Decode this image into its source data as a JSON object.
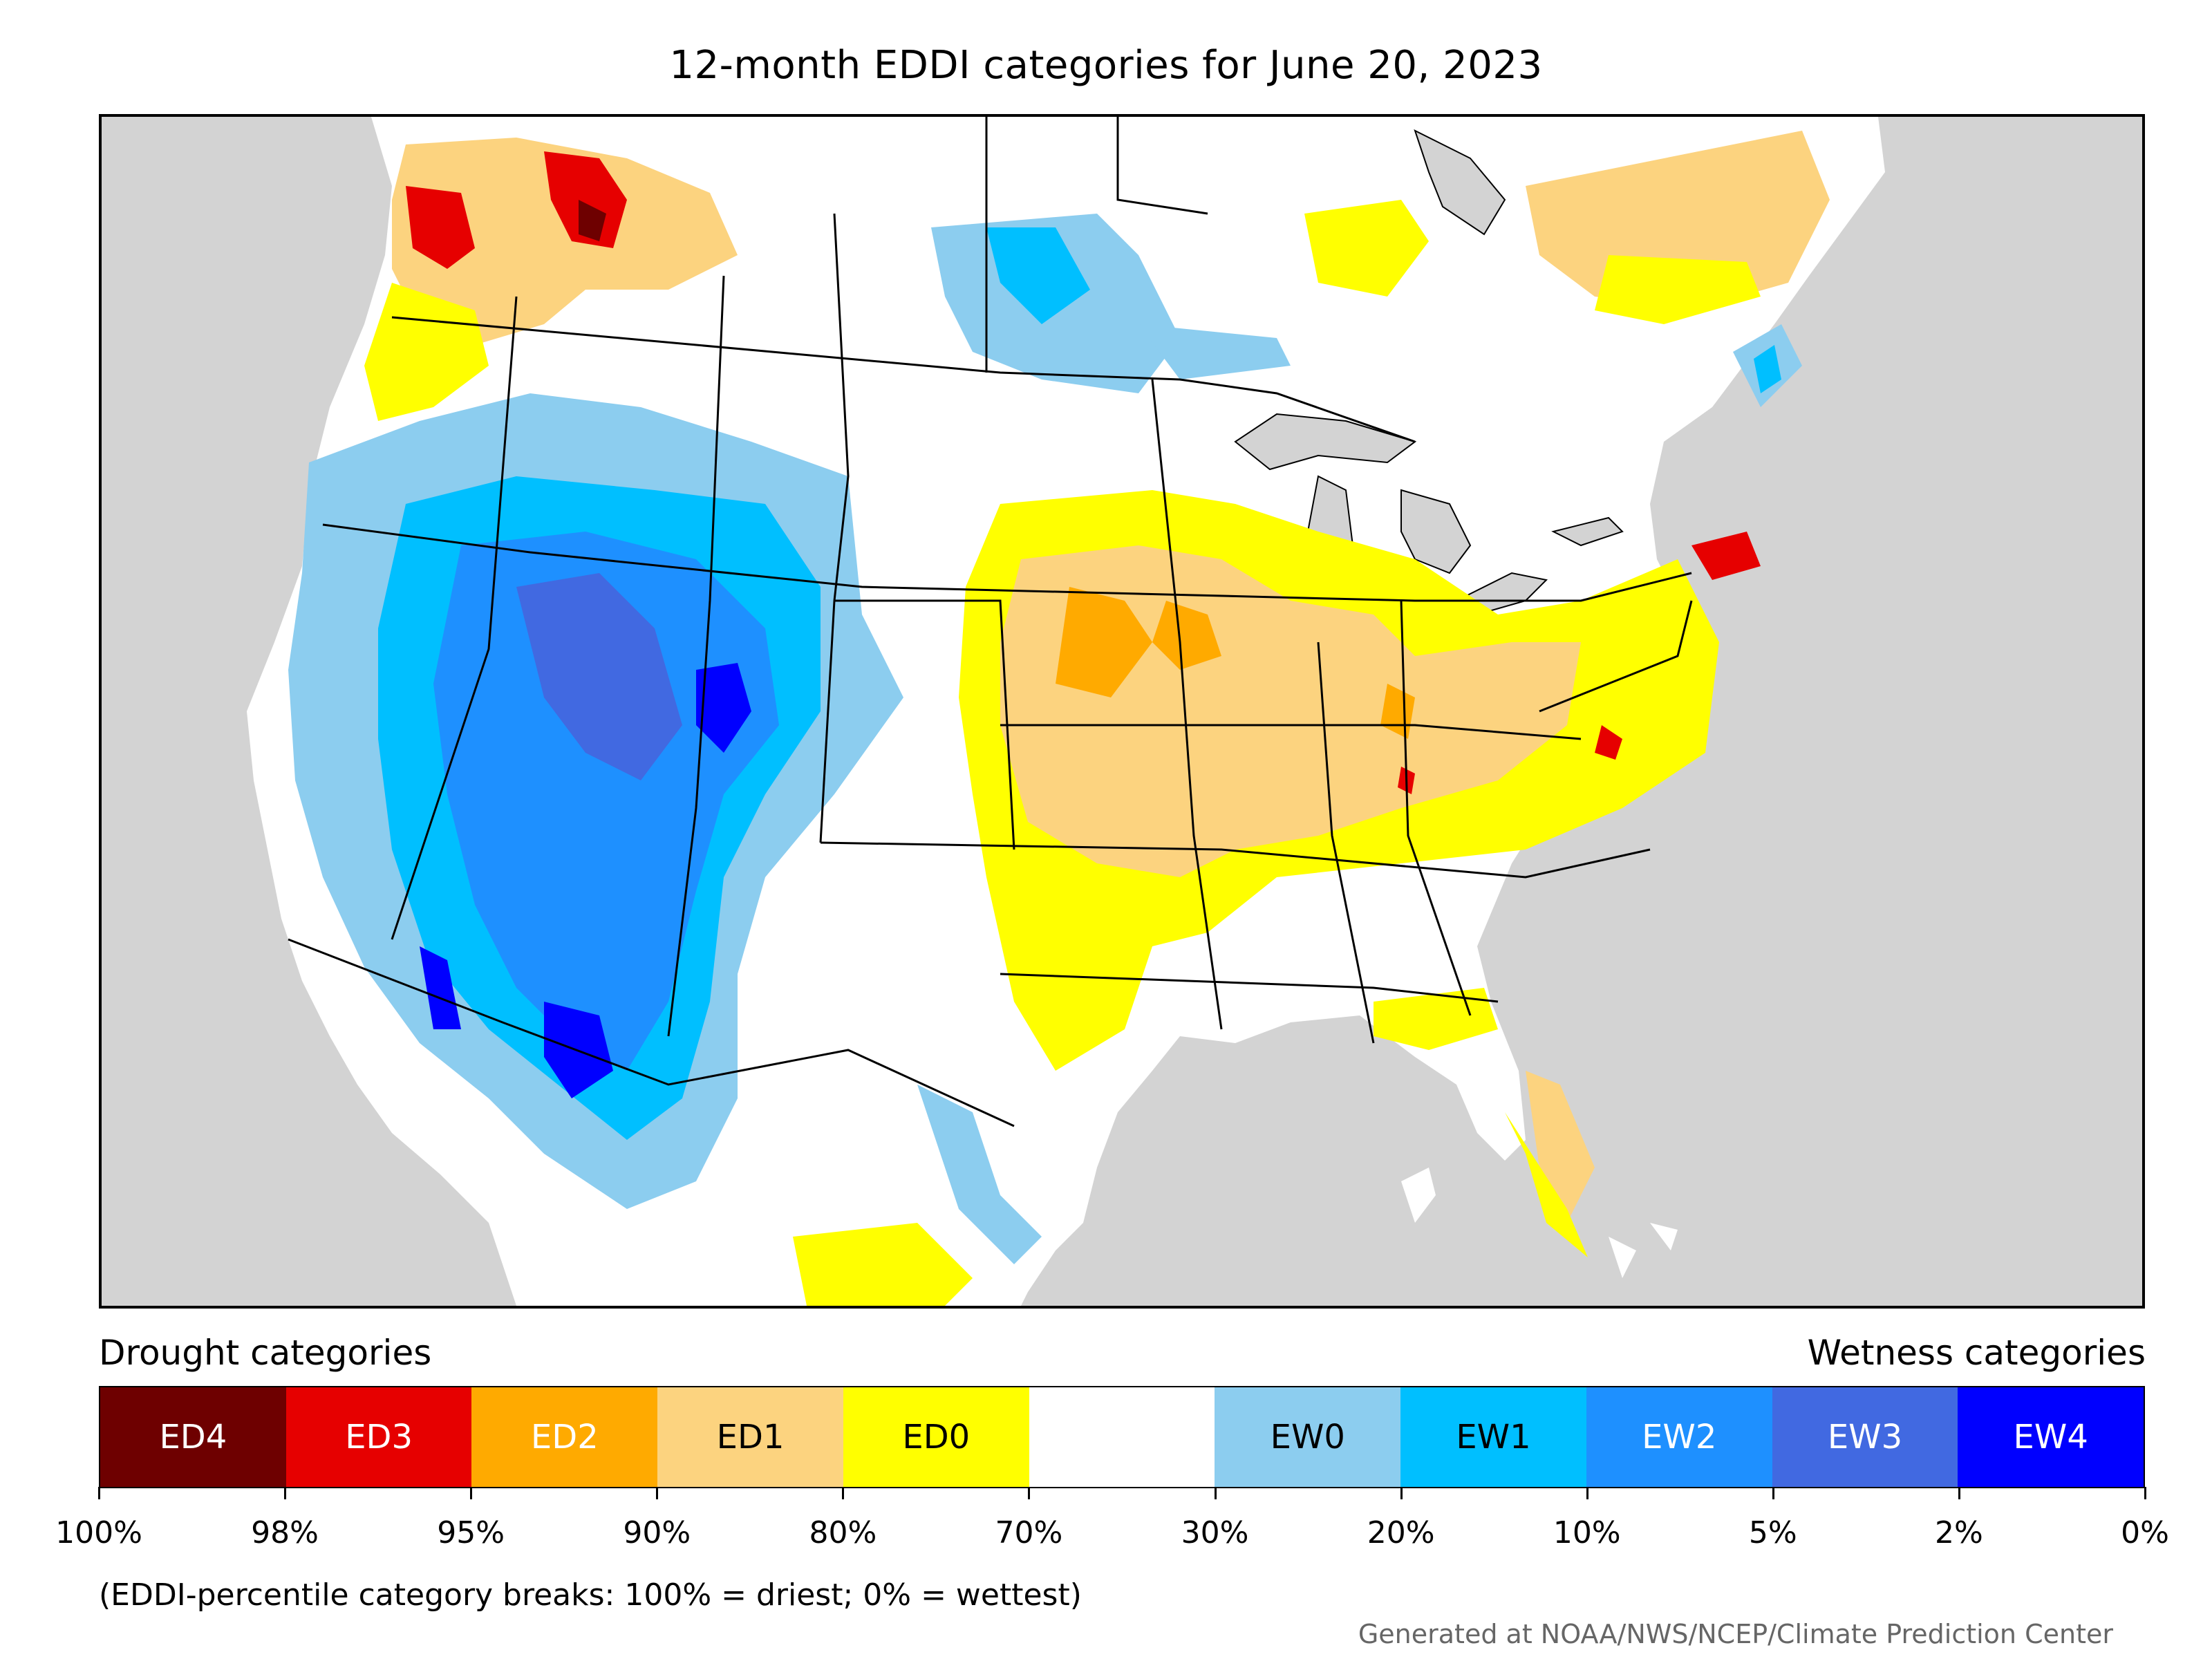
{
  "title": "12-month EDDI categories for June 20, 2023",
  "legend": {
    "drought_heading": "Drought categories",
    "wetness_heading": "Wetness categories",
    "categories": [
      {
        "label": "ED4",
        "color": "#6e0000",
        "text_color": "#ffffff"
      },
      {
        "label": "ED3",
        "color": "#e60000",
        "text_color": "#ffffff"
      },
      {
        "label": "ED2",
        "color": "#ffaa00",
        "text_color": "#ffffff"
      },
      {
        "label": "ED1",
        "color": "#fcd37f",
        "text_color": "#000000"
      },
      {
        "label": "ED0",
        "color": "#ffff00",
        "text_color": "#000000"
      },
      {
        "label": "",
        "color": "#ffffff",
        "text_color": "#000000"
      },
      {
        "label": "EW0",
        "color": "#8ccdef",
        "text_color": "#000000"
      },
      {
        "label": "EW1",
        "color": "#00bfff",
        "text_color": "#000000"
      },
      {
        "label": "EW2",
        "color": "#1e90ff",
        "text_color": "#ffffff"
      },
      {
        "label": "EW3",
        "color": "#4169e1",
        "text_color": "#ffffff"
      },
      {
        "label": "EW4",
        "color": "#0000ff",
        "text_color": "#ffffff"
      }
    ],
    "breaks": [
      "100%",
      "98%",
      "95%",
      "90%",
      "80%",
      "70%",
      "30%",
      "20%",
      "10%",
      "5%",
      "2%",
      "0%"
    ]
  },
  "note": "(EDDI-percentile category breaks: 100% = driest; 0% = wettest)",
  "credit": "Generated at NOAA/NWS/NCEP/Climate Prediction Center"
}
